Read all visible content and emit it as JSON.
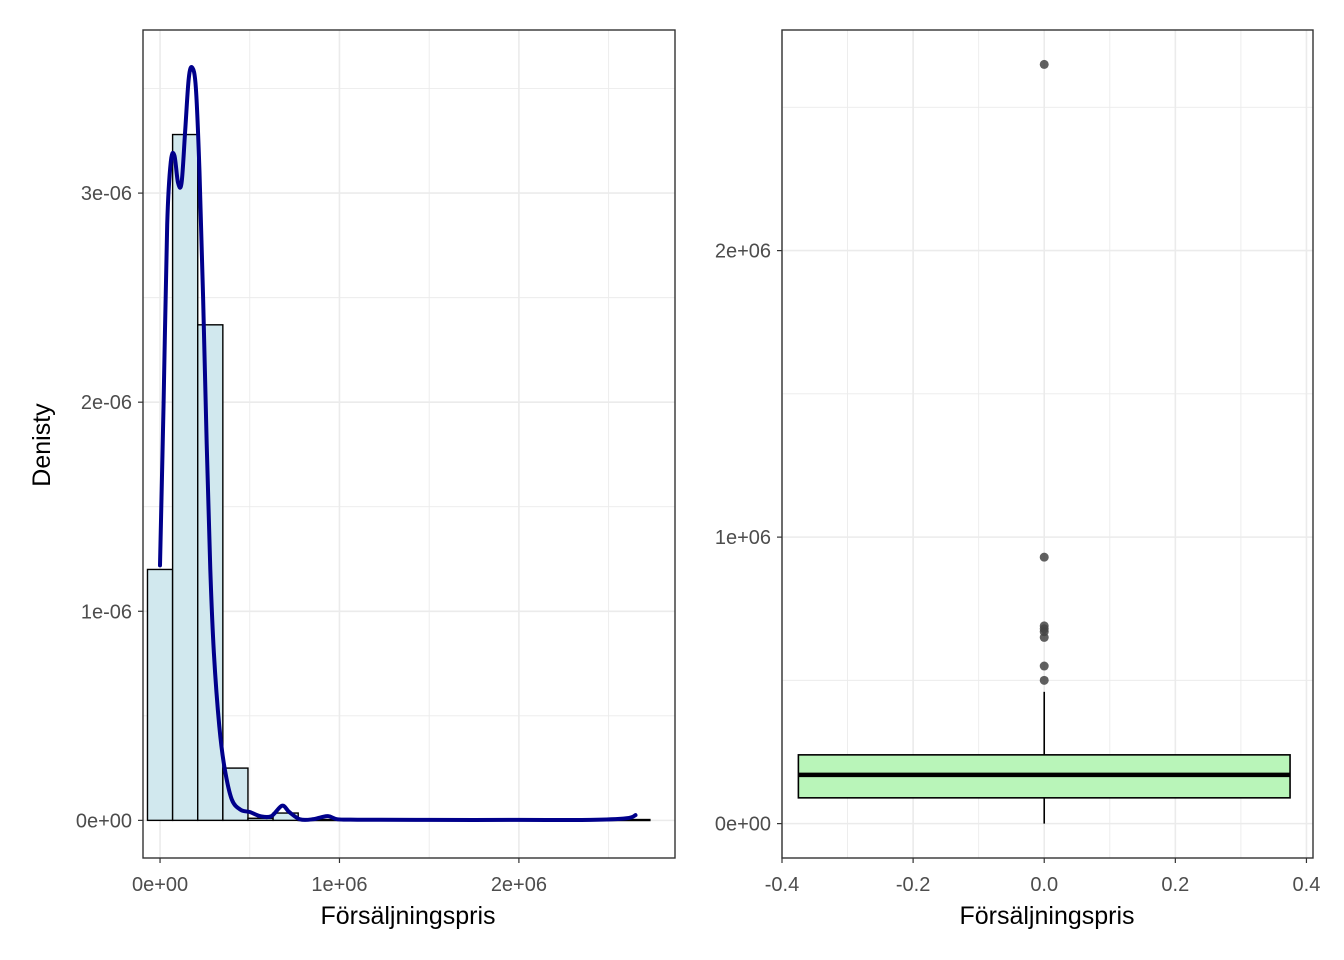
{
  "colors": {
    "hist_fill": "#d1e8ee",
    "hist_stroke": "#000000",
    "density_line": "#00008b",
    "box_fill": "#b9f5b9",
    "outlier": "#444444",
    "grid": "#ebebeb",
    "panel_border": "#333333"
  },
  "chart_data": [
    {
      "type": "bar",
      "subtype": "histogram-with-density",
      "xlabel": "Försäljningspris",
      "ylabel": "Denisty",
      "xlim": [
        -95000,
        2870000
      ],
      "ylim": [
        -1.8e-07,
        3.78e-06
      ],
      "x_ticks": [
        {
          "value": 0,
          "label": "0e+00"
        },
        {
          "value": 1000000,
          "label": "1e+06"
        },
        {
          "value": 2000000,
          "label": "2e+06"
        }
      ],
      "y_ticks": [
        {
          "value": 0,
          "label": "0e+00"
        },
        {
          "value": 1e-06,
          "label": "1e-06"
        },
        {
          "value": 2e-06,
          "label": "2e-06"
        },
        {
          "value": 3e-06,
          "label": "3e-06"
        }
      ],
      "bins": [
        {
          "x0": -70000,
          "x1": 70000,
          "density": 1.2e-06
        },
        {
          "x0": 70000,
          "x1": 210000,
          "density": 3.28e-06
        },
        {
          "x0": 210000,
          "x1": 350000,
          "density": 2.37e-06
        },
        {
          "x0": 350000,
          "x1": 490000,
          "density": 2.5e-07
        },
        {
          "x0": 490000,
          "x1": 630000,
          "density": 1e-08
        },
        {
          "x0": 630000,
          "x1": 770000,
          "density": 3.5e-08
        },
        {
          "x0": 770000,
          "x1": 2730000,
          "density": 4e-09
        }
      ],
      "density_curve": {
        "x": [
          0,
          20000,
          40000,
          60000,
          80000,
          100000,
          120000,
          140000,
          160000,
          180000,
          200000,
          220000,
          240000,
          260000,
          280000,
          300000,
          330000,
          360000,
          400000,
          450000,
          500000,
          560000,
          620000,
          680000,
          720000,
          780000,
          850000,
          900000,
          940000,
          990000,
          1100000,
          1500000,
          2000000,
          2400000,
          2600000,
          2650000
        ],
        "y": [
          1.22e-06,
          2e-06,
          2.85e-06,
          3.15e-06,
          3.18e-06,
          3.05e-06,
          3.05e-06,
          3.3e-06,
          3.55e-06,
          3.6e-06,
          3.5e-06,
          3.1e-06,
          2.5e-06,
          1.8e-06,
          1.2e-06,
          8e-07,
          4.5e-07,
          2.5e-07,
          1e-07,
          5e-08,
          4e-08,
          2e-08,
          2e-08,
          7e-08,
          4e-08,
          5e-09,
          5e-09,
          1.5e-08,
          2e-08,
          5e-09,
          3e-09,
          2e-09,
          2e-09,
          2e-09,
          1e-08,
          2.5e-08
        ]
      }
    },
    {
      "type": "box",
      "xlabel": "Försäljningspris",
      "ylabel": "",
      "xlim": [
        -0.4,
        0.41
      ],
      "ylim": [
        -120000,
        2770000
      ],
      "x_ticks": [
        {
          "value": -0.4,
          "label": "-0.4"
        },
        {
          "value": -0.2,
          "label": "-0.2"
        },
        {
          "value": 0,
          "label": "0.0"
        },
        {
          "value": 0.2,
          "label": "0.2"
        },
        {
          "value": 0.4,
          "label": "0.4"
        }
      ],
      "y_ticks": [
        {
          "value": 0,
          "label": "0e+00"
        },
        {
          "value": 1000000,
          "label": "1e+06"
        },
        {
          "value": 2000000,
          "label": "2e+06"
        }
      ],
      "box": {
        "x0": -0.375,
        "x1": 0.375,
        "q1": 90000,
        "median": 170000,
        "q3": 240000,
        "whisker_low": 0,
        "whisker_high": 460000
      },
      "outliers": [
        500000,
        550000,
        650000,
        670000,
        680000,
        690000,
        930000,
        2650000
      ]
    }
  ]
}
